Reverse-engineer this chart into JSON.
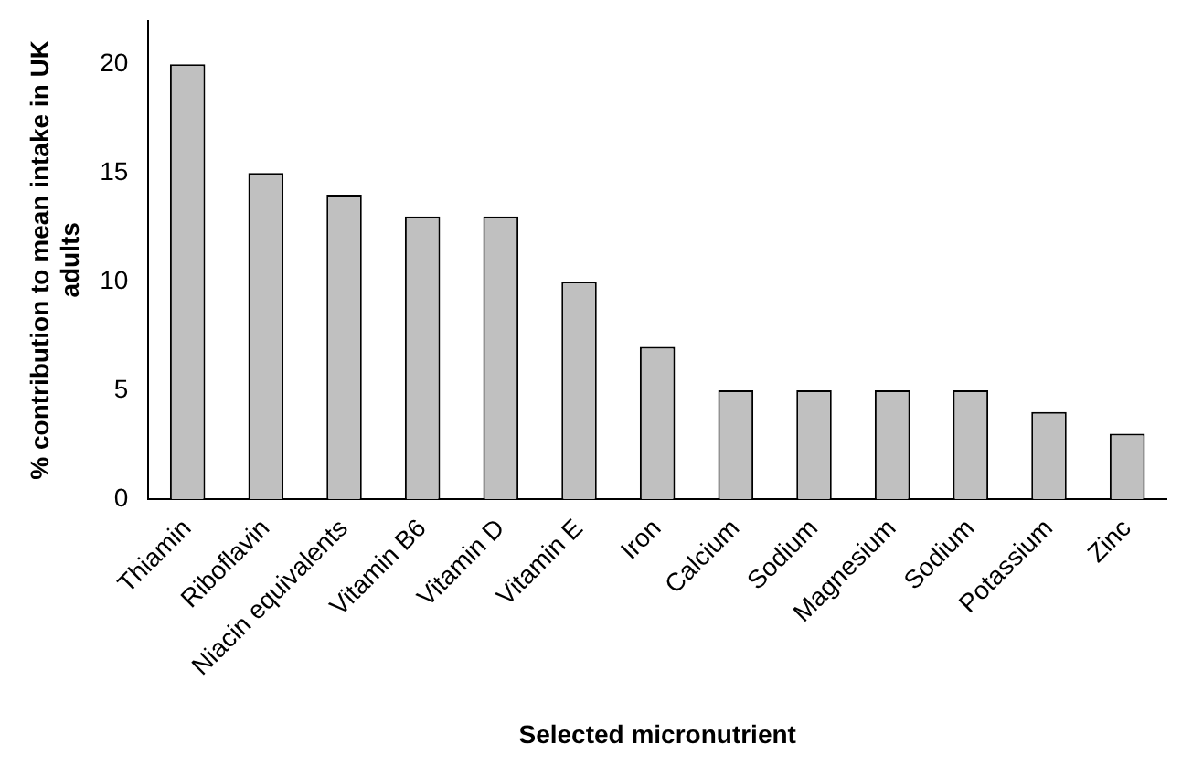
{
  "chart_data": {
    "type": "bar",
    "xlabel": "Selected micronutrient",
    "ylabel": "% contribution to mean intake in UK adults",
    "categories": [
      "Thiamin",
      "Riboflavin",
      "Niacin equivalents",
      "Vitamin B6",
      "Vitamin D",
      "Vitamin E",
      "Iron",
      "Calcium",
      "Sodium",
      "Magnesium",
      "Sodium",
      "Potassium",
      "Zinc"
    ],
    "values": [
      20,
      15,
      14,
      13,
      13,
      10,
      7,
      5,
      5,
      5,
      5,
      4,
      3
    ],
    "color": "#c0c0c0",
    "ylim": [
      0,
      22
    ],
    "yticks": [
      0,
      5,
      10,
      15,
      20
    ],
    "grid": false,
    "legend": false
  }
}
